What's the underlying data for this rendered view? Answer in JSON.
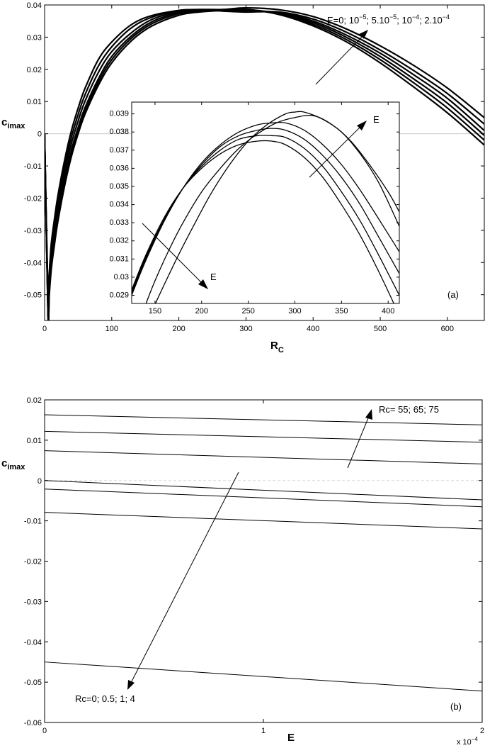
{
  "chart_data": [
    {
      "type": "line",
      "panel_label": "(a)",
      "xlabel_main": "R",
      "xlabel_sub": "C",
      "ylabel_main": "c",
      "ylabel_sub": "imax",
      "xlim": [
        0,
        655
      ],
      "ylim": [
        -0.058,
        0.04
      ],
      "xticks": [
        0,
        100,
        200,
        300,
        400,
        500,
        600
      ],
      "yticks": [
        -0.05,
        -0.04,
        -0.03,
        -0.02,
        -0.01,
        0,
        0.01,
        0.02,
        0.03,
        0.04
      ],
      "ytick_labels": [
        "-0.05",
        "-0.04",
        "-0.03",
        "-0.02",
        "-0.01",
        "0",
        "0.01",
        "0.02",
        "0.03",
        "0.04"
      ],
      "zero_line": true,
      "annotation": {
        "text_prefix": "E=0; 10",
        "sup1": "−5",
        "mid1": "; 5.10",
        "sup2": "−5",
        "mid2": "; 10",
        "sup3": "−4",
        "mid3": "; 2.10",
        "sup4": "−4"
      },
      "series": [
        {
          "x": [
            0,
            5,
            7,
            10,
            15,
            20,
            30,
            40,
            50,
            60,
            80,
            100,
            130,
            160,
            200,
            230,
            265,
            300,
            350,
            400,
            450,
            500,
            550,
            600,
            655
          ],
          "y": [
            0,
            -0.056,
            -0.05,
            -0.042,
            -0.034,
            -0.027,
            -0.016,
            -0.007,
            0.0,
            0.006,
            0.015,
            0.022,
            0.029,
            0.0335,
            0.0368,
            0.0378,
            0.0383,
            0.0386,
            0.037,
            0.0335,
            0.0285,
            0.022,
            0.0145,
            0.0065,
            -0.0035
          ]
        },
        {
          "x": [
            0,
            5,
            7,
            10,
            15,
            20,
            30,
            40,
            50,
            60,
            80,
            100,
            130,
            160,
            200,
            230,
            265,
            300,
            350,
            400,
            450,
            500,
            550,
            600,
            655
          ],
          "y": [
            0,
            -0.056,
            -0.049,
            -0.041,
            -0.033,
            -0.026,
            -0.015,
            -0.006,
            0.001,
            0.007,
            0.016,
            0.023,
            0.0298,
            0.0342,
            0.0373,
            0.038,
            0.0384,
            0.0386,
            0.0372,
            0.034,
            0.0292,
            0.023,
            0.0158,
            0.008,
            -0.002
          ]
        },
        {
          "x": [
            0,
            5,
            7,
            10,
            15,
            20,
            30,
            40,
            50,
            60,
            80,
            100,
            130,
            160,
            200,
            230,
            265,
            300,
            350,
            400,
            450,
            500,
            550,
            600,
            655
          ],
          "y": [
            0,
            -0.055,
            -0.048,
            -0.04,
            -0.032,
            -0.025,
            -0.014,
            -0.005,
            0.002,
            0.008,
            0.017,
            0.024,
            0.0305,
            0.0348,
            0.0377,
            0.0382,
            0.0384,
            0.0385,
            0.0374,
            0.0345,
            0.0299,
            0.024,
            0.017,
            0.0095,
            -0.0005
          ]
        },
        {
          "x": [
            0,
            5,
            7,
            10,
            15,
            20,
            30,
            40,
            50,
            60,
            80,
            100,
            130,
            160,
            200,
            230,
            265,
            300,
            350,
            400,
            450,
            500,
            550,
            600,
            655
          ],
          "y": [
            0,
            -0.054,
            -0.047,
            -0.038,
            -0.03,
            -0.023,
            -0.012,
            -0.003,
            0.004,
            0.01,
            0.019,
            0.0255,
            0.0315,
            0.0355,
            0.038,
            0.0384,
            0.0383,
            0.0381,
            0.0376,
            0.035,
            0.0306,
            0.025,
            0.0183,
            0.011,
            0.001
          ]
        },
        {
          "x": [
            0,
            5,
            7,
            10,
            15,
            20,
            30,
            40,
            50,
            60,
            80,
            100,
            130,
            160,
            200,
            230,
            265,
            300,
            350,
            400,
            450,
            500,
            550,
            600,
            655
          ],
          "y": [
            0,
            -0.052,
            -0.045,
            -0.036,
            -0.028,
            -0.021,
            -0.01,
            -0.001,
            0.006,
            0.012,
            0.021,
            0.027,
            0.033,
            0.0362,
            0.0383,
            0.0385,
            0.0381,
            0.0378,
            0.0378,
            0.0356,
            0.0315,
            0.026,
            0.0196,
            0.0125,
            0.003
          ]
        },
        {
          "x": [
            0,
            5,
            7,
            10,
            15,
            20,
            30,
            40,
            50,
            60,
            80,
            100,
            130,
            160,
            200,
            230,
            265,
            300,
            350,
            400,
            450,
            500,
            550,
            600,
            655
          ],
          "y": [
            0,
            -0.05,
            -0.043,
            -0.034,
            -0.026,
            -0.019,
            -0.008,
            0.001,
            0.008,
            0.014,
            0.023,
            0.0285,
            0.034,
            0.0367,
            0.0383,
            0.0386,
            0.0386,
            0.0391,
            0.0385,
            0.0364,
            0.0325,
            0.0273,
            0.0212,
            0.0142,
            0.005
          ]
        }
      ],
      "inset": {
        "xlim": [
          125,
          412
        ],
        "ylim": [
          0.02855,
          0.03965
        ],
        "xticks": [
          150,
          200,
          250,
          300,
          350,
          400
        ],
        "yticks": [
          0.029,
          0.03,
          0.031,
          0.032,
          0.033,
          0.034,
          0.035,
          0.036,
          0.037,
          0.038,
          0.039
        ],
        "ytick_labels": [
          "0.029",
          "0.03",
          "0.031",
          "0.032",
          "0.033",
          "0.034",
          "0.035",
          "0.036",
          "0.037",
          "0.038",
          "0.039"
        ],
        "label_E_top": "E",
        "label_E_bottom": "E",
        "series": [
          {
            "x": [
              125,
              140,
              160,
              180,
              200,
              220,
              240,
              260,
              275,
              290,
              310,
              330,
              350,
              370,
              390,
              412
            ],
            "y": [
              0.0293,
              0.0312,
              0.0333,
              0.0349,
              0.036,
              0.0368,
              0.0373,
              0.0375,
              0.0375,
              0.0373,
              0.0366,
              0.0355,
              0.034,
              0.0323,
              0.0303,
              0.0279
            ]
          },
          {
            "x": [
              125,
              140,
              160,
              180,
              200,
              220,
              240,
              260,
              275,
              290,
              310,
              330,
              350,
              370,
              390,
              412
            ],
            "y": [
              0.0292,
              0.0311,
              0.0332,
              0.0349,
              0.0361,
              0.037,
              0.0376,
              0.0378,
              0.0378,
              0.0377,
              0.0371,
              0.0361,
              0.0347,
              0.0331,
              0.0312,
              0.029
            ]
          },
          {
            "x": [
              125,
              140,
              160,
              180,
              200,
              220,
              240,
              260,
              275,
              290,
              310,
              330,
              350,
              370,
              390,
              412
            ],
            "y": [
              0.0291,
              0.031,
              0.0332,
              0.0349,
              0.0362,
              0.0372,
              0.0378,
              0.0381,
              0.0382,
              0.0381,
              0.0376,
              0.0367,
              0.0355,
              0.034,
              0.0322,
              0.0302
            ]
          },
          {
            "x": [
              125,
              140,
              160,
              180,
              200,
              220,
              240,
              260,
              275,
              290,
              310,
              330,
              350,
              370,
              390,
              412
            ],
            "y": [
              0.029,
              0.0309,
              0.0331,
              0.0349,
              0.0363,
              0.0373,
              0.038,
              0.0384,
              0.0385,
              0.0385,
              0.0381,
              0.0373,
              0.0362,
              0.0348,
              0.0332,
              0.0314
            ]
          },
          {
            "x": [
              140,
              150,
              165,
              180,
              200,
              220,
              240,
              260,
              280,
              300,
              320,
              340,
              360,
              380,
              400,
              412
            ],
            "y": [
              0.0285,
              0.0298,
              0.0315,
              0.033,
              0.0347,
              0.036,
              0.0371,
              0.0379,
              0.0385,
              0.0388,
              0.0389,
              0.0384,
              0.0375,
              0.0362,
              0.0347,
              0.0336
            ]
          },
          {
            "x": [
              150,
              160,
              175,
              190,
              210,
              230,
              250,
              270,
              290,
              300,
              310,
              330,
              350,
              370,
              390,
              412
            ],
            "y": [
              0.0285,
              0.0296,
              0.0312,
              0.0327,
              0.0346,
              0.0362,
              0.0375,
              0.0384,
              0.039,
              0.0391,
              0.0391,
              0.0387,
              0.038,
              0.0368,
              0.0352,
              0.0328
            ]
          }
        ]
      }
    },
    {
      "type": "line",
      "panel_label": "(b)",
      "xlabel": "E",
      "xscale_label_prefix": "x 10",
      "xscale_label_sup": "−4",
      "ylabel_main": "c",
      "ylabel_sub": "imax",
      "xlim": [
        0,
        2
      ],
      "ylim": [
        -0.06,
        0.02
      ],
      "xticks": [
        0,
        1,
        2
      ],
      "xtick_labels": [
        "0",
        "1",
        "2"
      ],
      "yticks": [
        -0.06,
        -0.05,
        -0.04,
        -0.03,
        -0.02,
        -0.01,
        0,
        0.01,
        0.02
      ],
      "ytick_labels": [
        "-0.06",
        "-0.05",
        "-0.04",
        "-0.03",
        "-0.02",
        "-0.01",
        "0",
        "0.01",
        "0.02"
      ],
      "annotation_up": "Rc= 55; 65; 75",
      "annotation_down": "Rc=0; 0.5; 1; 4",
      "series": [
        {
          "x": [
            0,
            2
          ],
          "y": [
            0.0163,
            0.0138
          ]
        },
        {
          "x": [
            0,
            2
          ],
          "y": [
            0.0122,
            0.0095
          ]
        },
        {
          "x": [
            0,
            2
          ],
          "y": [
            0.0074,
            0.0041
          ]
        },
        {
          "x": [
            0,
            2
          ],
          "y": [
            0.0,
            -0.0048
          ]
        },
        {
          "x": [
            0,
            2
          ],
          "y": [
            -0.0021,
            -0.0065
          ]
        },
        {
          "x": [
            0,
            2
          ],
          "y": [
            -0.0079,
            -0.012
          ]
        },
        {
          "x": [
            0,
            2
          ],
          "y": [
            -0.045,
            -0.0522
          ]
        }
      ]
    }
  ]
}
